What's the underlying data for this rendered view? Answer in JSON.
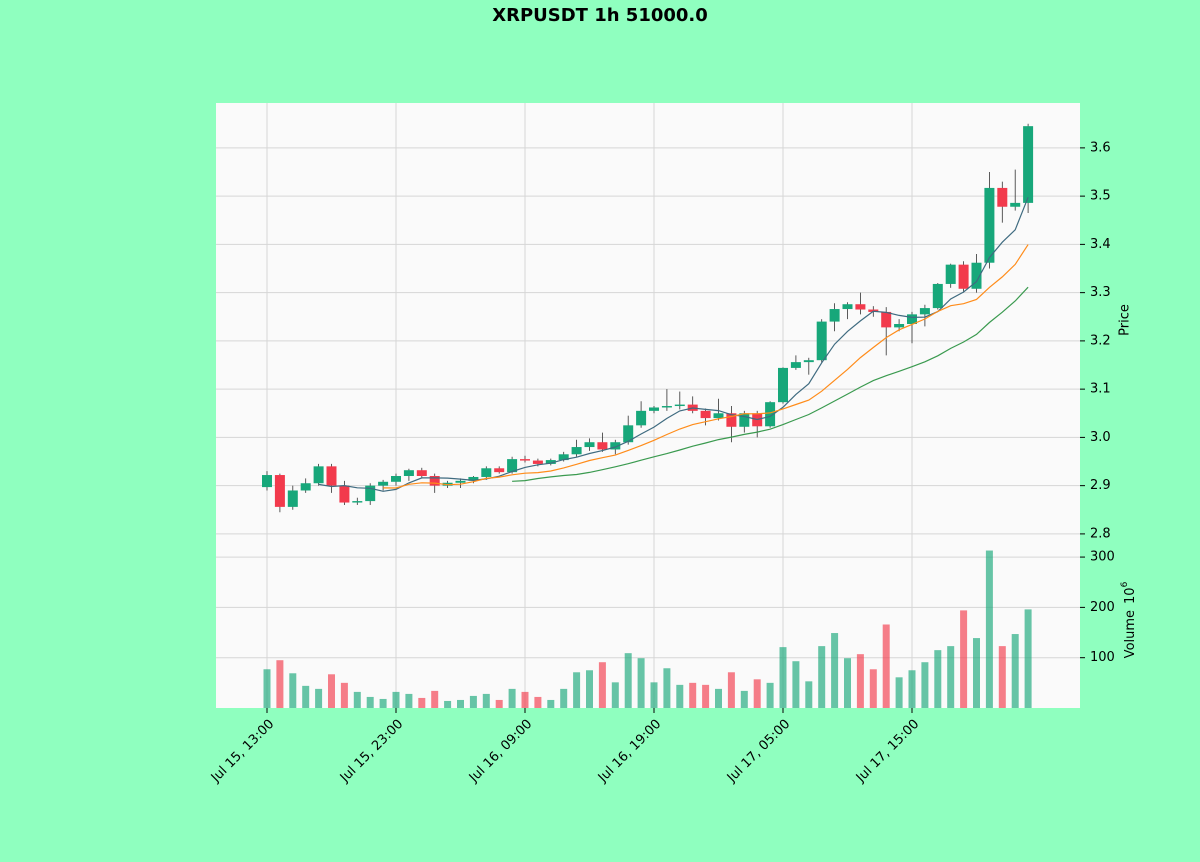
{
  "chart_data": {
    "type": "candlestick",
    "title": "XRPUSDT 1h 51000.0",
    "categories": [
      "Jul 15, 13:00",
      null,
      null,
      null,
      null,
      null,
      null,
      null,
      null,
      null,
      "Jul 15, 23:00",
      null,
      null,
      null,
      null,
      null,
      null,
      null,
      null,
      null,
      "Jul 16, 09:00",
      null,
      null,
      null,
      null,
      null,
      null,
      null,
      null,
      null,
      "Jul 16, 19:00",
      null,
      null,
      null,
      null,
      null,
      null,
      null,
      null,
      null,
      "Jul 17, 05:00",
      null,
      null,
      null,
      null,
      null,
      null,
      null,
      null,
      null,
      "Jul 17, 15:00",
      null,
      null,
      null,
      null,
      null,
      null,
      null,
      null,
      null
    ],
    "open": [
      2.897,
      2.922,
      2.856,
      2.89,
      2.905,
      2.94,
      2.9,
      2.865,
      2.868,
      2.9,
      2.908,
      2.92,
      2.932,
      2.92,
      2.9,
      2.906,
      2.91,
      2.918,
      2.936,
      2.928,
      2.955,
      2.952,
      2.945,
      2.953,
      2.965,
      2.98,
      2.99,
      2.975,
      2.99,
      3.025,
      3.055,
      3.062,
      3.065,
      3.068,
      3.055,
      3.04,
      3.05,
      3.022,
      3.05,
      3.023,
      3.073,
      3.144,
      3.156,
      3.16,
      3.24,
      3.266,
      3.276,
      3.265,
      3.26,
      3.228,
      3.235,
      3.255,
      3.268,
      3.318,
      3.358,
      3.308,
      3.362,
      3.517,
      3.478,
      3.486
    ],
    "high": [
      2.93,
      2.925,
      2.9,
      2.915,
      2.945,
      2.945,
      2.91,
      2.875,
      2.905,
      2.912,
      2.925,
      2.935,
      2.937,
      2.925,
      2.91,
      2.915,
      2.92,
      2.94,
      2.94,
      2.96,
      2.962,
      2.956,
      2.956,
      2.97,
      2.995,
      2.998,
      3.01,
      2.995,
      3.045,
      3.075,
      3.065,
      3.1,
      3.095,
      3.085,
      3.06,
      3.08,
      3.065,
      3.055,
      3.055,
      3.075,
      3.145,
      3.17,
      3.165,
      3.245,
      3.278,
      3.28,
      3.3,
      3.272,
      3.27,
      3.245,
      3.26,
      3.275,
      3.32,
      3.36,
      3.365,
      3.38,
      3.55,
      3.53,
      3.555,
      3.65
    ],
    "low": [
      2.89,
      2.845,
      2.85,
      2.885,
      2.9,
      2.885,
      2.86,
      2.86,
      2.86,
      2.89,
      2.9,
      2.91,
      2.915,
      2.885,
      2.895,
      2.895,
      2.905,
      2.912,
      2.925,
      2.925,
      2.948,
      2.94,
      2.942,
      2.95,
      2.96,
      2.972,
      2.97,
      2.965,
      2.985,
      3.02,
      3.05,
      3.055,
      3.058,
      3.05,
      3.025,
      3.035,
      2.99,
      3.01,
      3.0,
      3.02,
      3.07,
      3.14,
      3.13,
      3.155,
      3.22,
      3.245,
      3.255,
      3.25,
      3.17,
      3.22,
      3.195,
      3.23,
      3.265,
      3.31,
      3.3,
      3.3,
      3.35,
      3.445,
      3.47,
      3.465
    ],
    "close": [
      2.922,
      2.856,
      2.89,
      2.905,
      2.94,
      2.9,
      2.865,
      2.868,
      2.9,
      2.908,
      2.92,
      2.932,
      2.92,
      2.9,
      2.906,
      2.91,
      2.918,
      2.936,
      2.928,
      2.955,
      2.952,
      2.945,
      2.953,
      2.965,
      2.98,
      2.99,
      2.975,
      2.99,
      3.025,
      3.055,
      3.062,
      3.065,
      3.068,
      3.055,
      3.04,
      3.05,
      3.022,
      3.05,
      3.023,
      3.073,
      3.144,
      3.156,
      3.16,
      3.24,
      3.266,
      3.276,
      3.265,
      3.26,
      3.228,
      3.235,
      3.255,
      3.268,
      3.318,
      3.358,
      3.308,
      3.362,
      3.517,
      3.478,
      3.486,
      3.645
    ],
    "volume": [
      77,
      95,
      69,
      44,
      38,
      67,
      50,
      32,
      22,
      18,
      32,
      28,
      20,
      34,
      14,
      16,
      24,
      28,
      16,
      38,
      32,
      22,
      16,
      38,
      71,
      75,
      91,
      51,
      109,
      99,
      51,
      79,
      46,
      50,
      46,
      38,
      71,
      34,
      57,
      50,
      121,
      93,
      53,
      123,
      149,
      99,
      107,
      77,
      166,
      61,
      75,
      91,
      115,
      123,
      194,
      139,
      313,
      123,
      147,
      196
    ],
    "ylabel": "Price",
    "ylim": [
      2.777,
      3.693
    ],
    "yticks": [
      2.8,
      2.9,
      {
        "value": 3,
        "label": "3.0"
      },
      3.1,
      3.2,
      3.3,
      3.4,
      3.5,
      3.6
    ],
    "volume_label": "Volume",
    "volume_scale": {
      "base": "10",
      "exponent": "6"
    },
    "volume_ylim": [
      0,
      324
    ],
    "volume_yticks": [
      100,
      200,
      300
    ],
    "mav": [
      5,
      10,
      20
    ],
    "mav_colors": [
      "#3f6b80",
      "#ff8c1a",
      "#3a9a4f"
    ],
    "up_color": "#17a77a",
    "down_color": "#f23a4c",
    "grid": true
  }
}
